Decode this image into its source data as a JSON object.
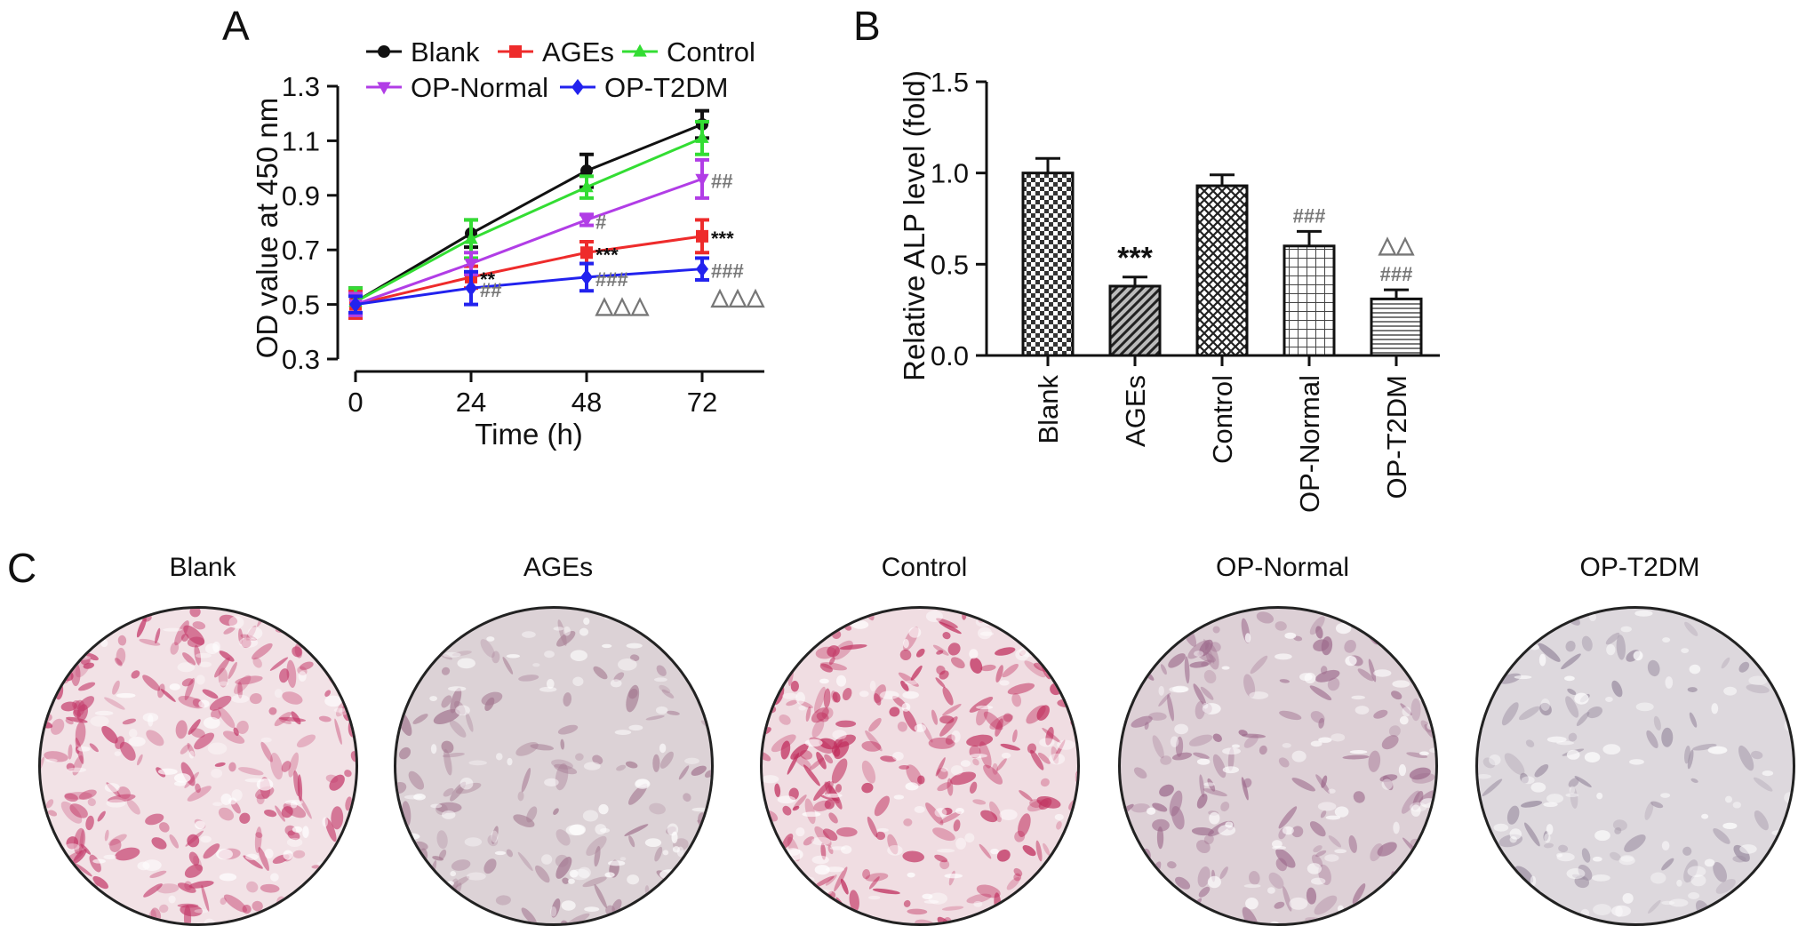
{
  "panels": {
    "a": "A",
    "b": "B",
    "c": "C"
  },
  "chart_data": [
    {
      "type": "line",
      "xlabel": "Time (h)",
      "ylabel": "OD value at 450 nm",
      "x": [
        0,
        24,
        48,
        72
      ],
      "xticks": [
        "0",
        "24",
        "48",
        "72"
      ],
      "ylim": [
        0.3,
        1.3
      ],
      "yticks": [
        "0.3",
        "0.5",
        "0.7",
        "0.9",
        "1.1",
        "1.3"
      ],
      "legend_position": "top",
      "series": [
        {
          "name": "Blank",
          "color": "#111111",
          "marker": "circle",
          "values": [
            0.51,
            0.76,
            0.99,
            1.16
          ],
          "errors": [
            0.05,
            0.05,
            0.06,
            0.05
          ]
        },
        {
          "name": "AGEs",
          "color": "#ee2b2b",
          "marker": "square",
          "values": [
            0.5,
            0.6,
            0.69,
            0.75
          ],
          "errors": [
            0.05,
            0.04,
            0.04,
            0.06
          ]
        },
        {
          "name": "Control",
          "color": "#33dd33",
          "marker": "triangle-up",
          "values": [
            0.51,
            0.74,
            0.93,
            1.11
          ],
          "errors": [
            0.05,
            0.07,
            0.04,
            0.06
          ]
        },
        {
          "name": "OP-Normal",
          "color": "#b13de6",
          "marker": "triangle-down",
          "values": [
            0.5,
            0.65,
            0.81,
            0.96
          ],
          "errors": [
            0.04,
            0.04,
            0.02,
            0.07
          ]
        },
        {
          "name": "OP-T2DM",
          "color": "#2222ee",
          "marker": "diamond",
          "values": [
            0.5,
            0.56,
            0.6,
            0.63
          ],
          "errors": [
            0.03,
            0.06,
            0.05,
            0.04
          ]
        }
      ],
      "annotations": [
        {
          "text": "**",
          "series": "AGEs",
          "x": 24,
          "color": "#111111"
        },
        {
          "text": "##",
          "series": "OP-T2DM",
          "x": 24,
          "color": "#777777"
        },
        {
          "text": "#",
          "series": "OP-Normal",
          "x": 48,
          "color": "#777777"
        },
        {
          "text": "***",
          "series": "AGEs",
          "x": 48,
          "color": "#111111"
        },
        {
          "text": "###",
          "series": "OP-T2DM",
          "x": 48,
          "color": "#777777"
        },
        {
          "text": "△△△",
          "series": "OP-T2DM",
          "x": 48,
          "color": "#777777"
        },
        {
          "text": "##",
          "series": "OP-Normal",
          "x": 72,
          "color": "#777777"
        },
        {
          "text": "***",
          "series": "AGEs",
          "x": 72,
          "color": "#111111"
        },
        {
          "text": "###",
          "series": "OP-T2DM",
          "x": 72,
          "color": "#777777"
        },
        {
          "text": "△△△",
          "series": "OP-T2DM",
          "x": 72,
          "color": "#777777"
        }
      ]
    },
    {
      "type": "bar",
      "ylabel": "Relative ALP level (fold)",
      "categories": [
        "Blank",
        "AGEs",
        "Control",
        "OP-Normal",
        "OP-T2DM"
      ],
      "values": [
        1.0,
        0.38,
        0.93,
        0.6,
        0.31
      ],
      "errors": [
        0.08,
        0.05,
        0.06,
        0.08,
        0.05
      ],
      "patterns": [
        "checker",
        "diagonal",
        "crosshatch",
        "grid",
        "horizontal"
      ],
      "ylim": [
        0,
        1.5
      ],
      "yticks": [
        "0.0",
        "0.5",
        "1.0",
        "1.5"
      ],
      "annotations": [
        {
          "category": "AGEs",
          "lines": [
            "***"
          ],
          "color": "#111111"
        },
        {
          "category": "OP-Normal",
          "lines": [
            "###"
          ],
          "color": "#777777"
        },
        {
          "category": "OP-T2DM",
          "lines": [
            "△△",
            "###"
          ],
          "color": "#777777"
        }
      ]
    }
  ],
  "staining": {
    "dishes": [
      {
        "label": "Blank",
        "base": "#f2e2e6",
        "spot": "#c43a6a",
        "density": 0.9
      },
      {
        "label": "AGEs",
        "base": "#dcd2d6",
        "spot": "#a57a92",
        "density": 0.35
      },
      {
        "label": "Control",
        "base": "#f0dde2",
        "spot": "#c02c5c",
        "density": 0.85
      },
      {
        "label": "OP-Normal",
        "base": "#ddd0d6",
        "spot": "#9d6a8c",
        "density": 0.55
      },
      {
        "label": "OP-T2DM",
        "base": "#ddd8dd",
        "spot": "#9a8ca0",
        "density": 0.2
      }
    ]
  }
}
